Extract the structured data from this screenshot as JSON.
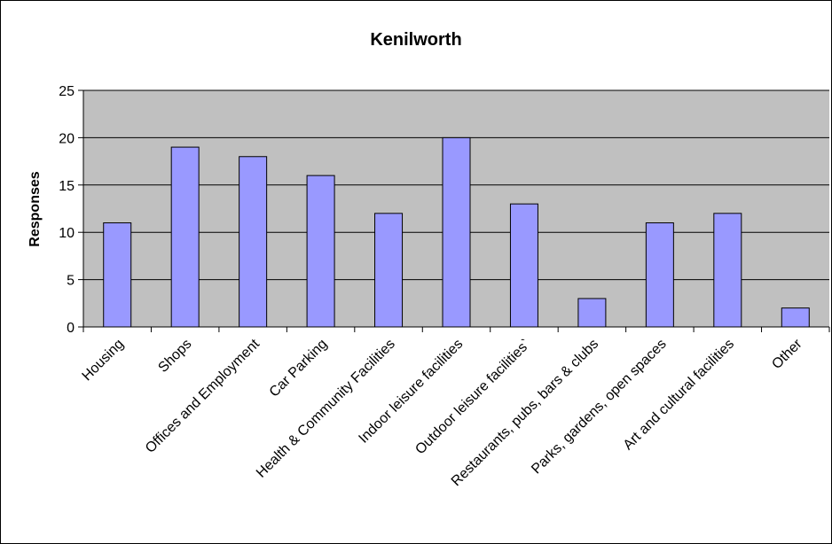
{
  "chart_data": {
    "type": "bar",
    "title": "Kenilworth",
    "xlabel": "",
    "ylabel": "Responses",
    "ylim": [
      0,
      25
    ],
    "yticks": [
      0,
      5,
      10,
      15,
      20,
      25
    ],
    "grid": true,
    "legend": "none",
    "categories": [
      "Housing",
      "Shops",
      "Offices and Employment",
      "Car Parking",
      "Health & Community Facilities",
      "Indoor leisure facilities",
      "Outdoor leisure facilities`",
      "Restaurants, pubs, bars & clubs",
      "Parks, gardens, open spaces",
      "Art and cultural facilities",
      "Other"
    ],
    "values": [
      11,
      19,
      18,
      16,
      12,
      20,
      13,
      3,
      11,
      12,
      2
    ]
  },
  "colors": {
    "bar_fill": "#9999ff",
    "bar_stroke": "#000000",
    "plot_background": "#c0c0c0",
    "gridline": "#000000",
    "frame": "#000000"
  }
}
